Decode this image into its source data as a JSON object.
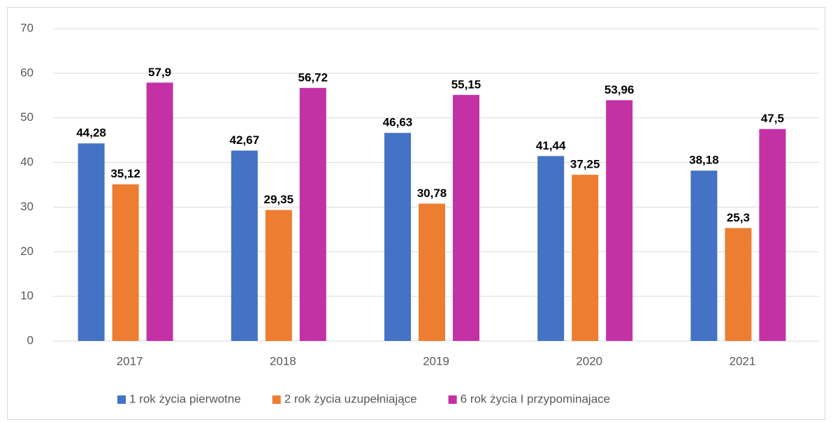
{
  "chart_data": {
    "type": "bar",
    "categories": [
      "2017",
      "2018",
      "2019",
      "2020",
      "2021"
    ],
    "series": [
      {
        "name": "1 rok życia pierwotne",
        "color": "#4472c4",
        "values": [
          44.28,
          42.67,
          46.63,
          41.44,
          38.18
        ],
        "value_labels": [
          "44,28",
          "42,67",
          "46,63",
          "41,44",
          "38,18"
        ]
      },
      {
        "name": "2 rok życia uzupełniające",
        "color": "#ed7d31",
        "values": [
          35.12,
          29.35,
          30.78,
          37.25,
          25.3
        ],
        "value_labels": [
          "35,12",
          "29,35",
          "30,78",
          "37,25",
          "25,3"
        ]
      },
      {
        "name": "6 rok życia I przypominajace",
        "color": "#c331a5",
        "values": [
          57.9,
          56.72,
          55.15,
          53.96,
          47.5
        ],
        "value_labels": [
          "57,9",
          "56,72",
          "55,15",
          "53,96",
          "47,5"
        ]
      }
    ],
    "ylim": [
      0,
      70
    ],
    "yticks": [
      0,
      10,
      20,
      30,
      40,
      50,
      60,
      70
    ],
    "grid": true,
    "legend": "bottom"
  }
}
